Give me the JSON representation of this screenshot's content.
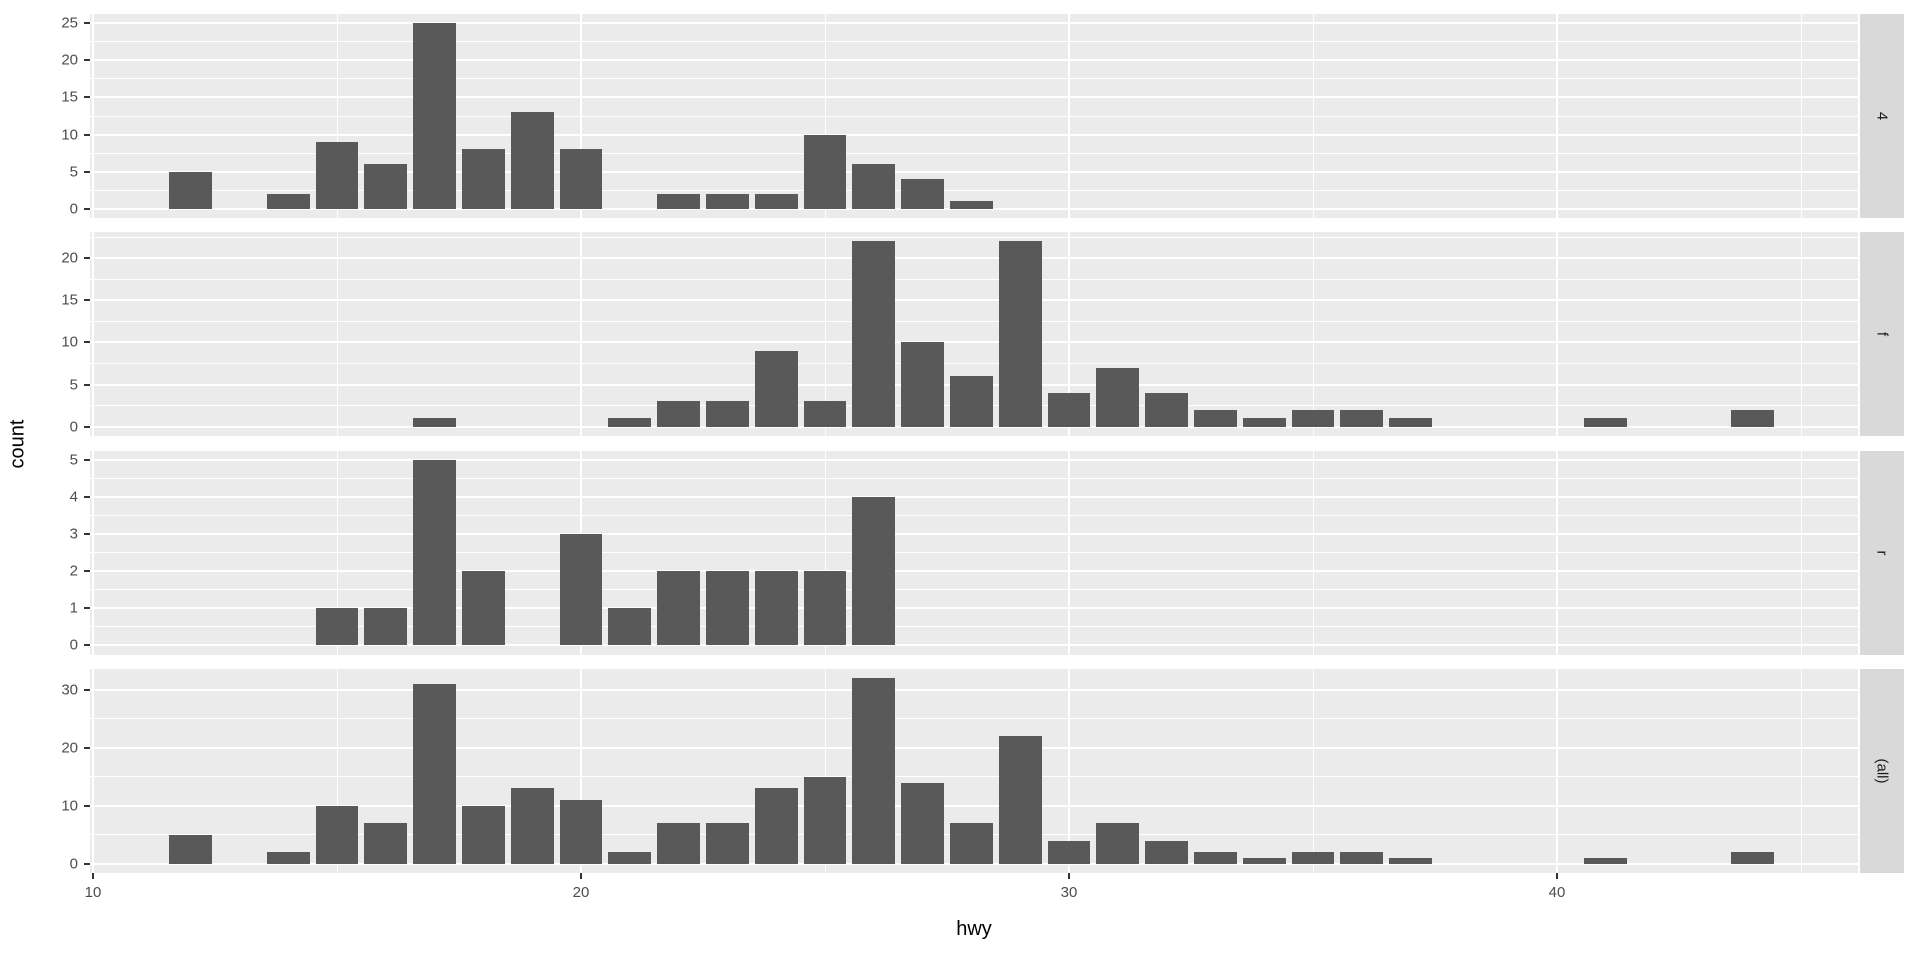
{
  "chart_data": {
    "type": "bar",
    "subtype": "faceted-histogram",
    "title": "",
    "xlabel": "hwy",
    "ylabel": "count",
    "legend": "none",
    "grid": "on",
    "bar_color": "#595959",
    "panel_bg_color": "#EBEBEB",
    "strip_bg_color": "#D9D9D9",
    "strip_text_color": "#1A1A1A",
    "tick_label_color": "#4D4D4D",
    "x_axis": {
      "range": [
        9.9,
        46.2
      ],
      "major_ticks": [
        10,
        20,
        30,
        40
      ],
      "tick_labels": [
        "10",
        "20",
        "30",
        "40"
      ],
      "minor_gridlines": [
        15,
        25,
        35,
        45
      ]
    },
    "bin_width": 1,
    "facets": [
      {
        "label": "4",
        "y_data_max": 25,
        "y_ticks": [
          0,
          5,
          10,
          15,
          20,
          25
        ],
        "y_tick_labels": [
          "0",
          "5",
          "10",
          "15",
          "20",
          "25"
        ],
        "y_minor_step": 2.5,
        "bins": [
          {
            "x": 12,
            "count": 5
          },
          {
            "x": 14,
            "count": 2
          },
          {
            "x": 15,
            "count": 9
          },
          {
            "x": 16,
            "count": 6
          },
          {
            "x": 17,
            "count": 25
          },
          {
            "x": 18,
            "count": 8
          },
          {
            "x": 19,
            "count": 13
          },
          {
            "x": 20,
            "count": 8
          },
          {
            "x": 22,
            "count": 2
          },
          {
            "x": 23,
            "count": 2
          },
          {
            "x": 24,
            "count": 2
          },
          {
            "x": 25,
            "count": 10
          },
          {
            "x": 26,
            "count": 6
          },
          {
            "x": 27,
            "count": 4
          },
          {
            "x": 28,
            "count": 1
          }
        ]
      },
      {
        "label": "f",
        "y_data_max": 22,
        "y_ticks": [
          0,
          5,
          10,
          15,
          20
        ],
        "y_tick_labels": [
          "0",
          "5",
          "10",
          "15",
          "20"
        ],
        "y_minor_step": 2.5,
        "bins": [
          {
            "x": 17,
            "count": 1
          },
          {
            "x": 21,
            "count": 1
          },
          {
            "x": 22,
            "count": 3
          },
          {
            "x": 23,
            "count": 3
          },
          {
            "x": 24,
            "count": 9
          },
          {
            "x": 25,
            "count": 3
          },
          {
            "x": 26,
            "count": 22
          },
          {
            "x": 27,
            "count": 10
          },
          {
            "x": 28,
            "count": 6
          },
          {
            "x": 29,
            "count": 22
          },
          {
            "x": 30,
            "count": 4
          },
          {
            "x": 31,
            "count": 7
          },
          {
            "x": 32,
            "count": 4
          },
          {
            "x": 33,
            "count": 2
          },
          {
            "x": 34,
            "count": 1
          },
          {
            "x": 35,
            "count": 2
          },
          {
            "x": 36,
            "count": 2
          },
          {
            "x": 37,
            "count": 1
          },
          {
            "x": 41,
            "count": 1
          },
          {
            "x": 44,
            "count": 2
          }
        ]
      },
      {
        "label": "r",
        "y_data_max": 5,
        "y_ticks": [
          0,
          1,
          2,
          3,
          4,
          5
        ],
        "y_tick_labels": [
          "0",
          "1",
          "2",
          "3",
          "4",
          "5"
        ],
        "y_minor_step": 0.5,
        "bins": [
          {
            "x": 15,
            "count": 1
          },
          {
            "x": 16,
            "count": 1
          },
          {
            "x": 17,
            "count": 5
          },
          {
            "x": 18,
            "count": 2
          },
          {
            "x": 20,
            "count": 3
          },
          {
            "x": 21,
            "count": 1
          },
          {
            "x": 22,
            "count": 2
          },
          {
            "x": 23,
            "count": 2
          },
          {
            "x": 24,
            "count": 2
          },
          {
            "x": 25,
            "count": 2
          },
          {
            "x": 26,
            "count": 4
          }
        ]
      },
      {
        "label": "(all)",
        "y_data_max": 32,
        "y_ticks": [
          0,
          10,
          20,
          30
        ],
        "y_tick_labels": [
          "0",
          "10",
          "20",
          "30"
        ],
        "y_minor_step": 5,
        "bins": [
          {
            "x": 12,
            "count": 5
          },
          {
            "x": 14,
            "count": 2
          },
          {
            "x": 15,
            "count": 10
          },
          {
            "x": 16,
            "count": 7
          },
          {
            "x": 17,
            "count": 31
          },
          {
            "x": 18,
            "count": 10
          },
          {
            "x": 19,
            "count": 13
          },
          {
            "x": 20,
            "count": 11
          },
          {
            "x": 21,
            "count": 2
          },
          {
            "x": 22,
            "count": 7
          },
          {
            "x": 23,
            "count": 7
          },
          {
            "x": 24,
            "count": 13
          },
          {
            "x": 25,
            "count": 15
          },
          {
            "x": 26,
            "count": 32
          },
          {
            "x": 27,
            "count": 14
          },
          {
            "x": 28,
            "count": 7
          },
          {
            "x": 29,
            "count": 22
          },
          {
            "x": 30,
            "count": 4
          },
          {
            "x": 31,
            "count": 7
          },
          {
            "x": 32,
            "count": 4
          },
          {
            "x": 33,
            "count": 2
          },
          {
            "x": 34,
            "count": 1
          },
          {
            "x": 35,
            "count": 2
          },
          {
            "x": 36,
            "count": 2
          },
          {
            "x": 37,
            "count": 1
          },
          {
            "x": 41,
            "count": 1
          },
          {
            "x": 44,
            "count": 2
          }
        ]
      }
    ]
  }
}
